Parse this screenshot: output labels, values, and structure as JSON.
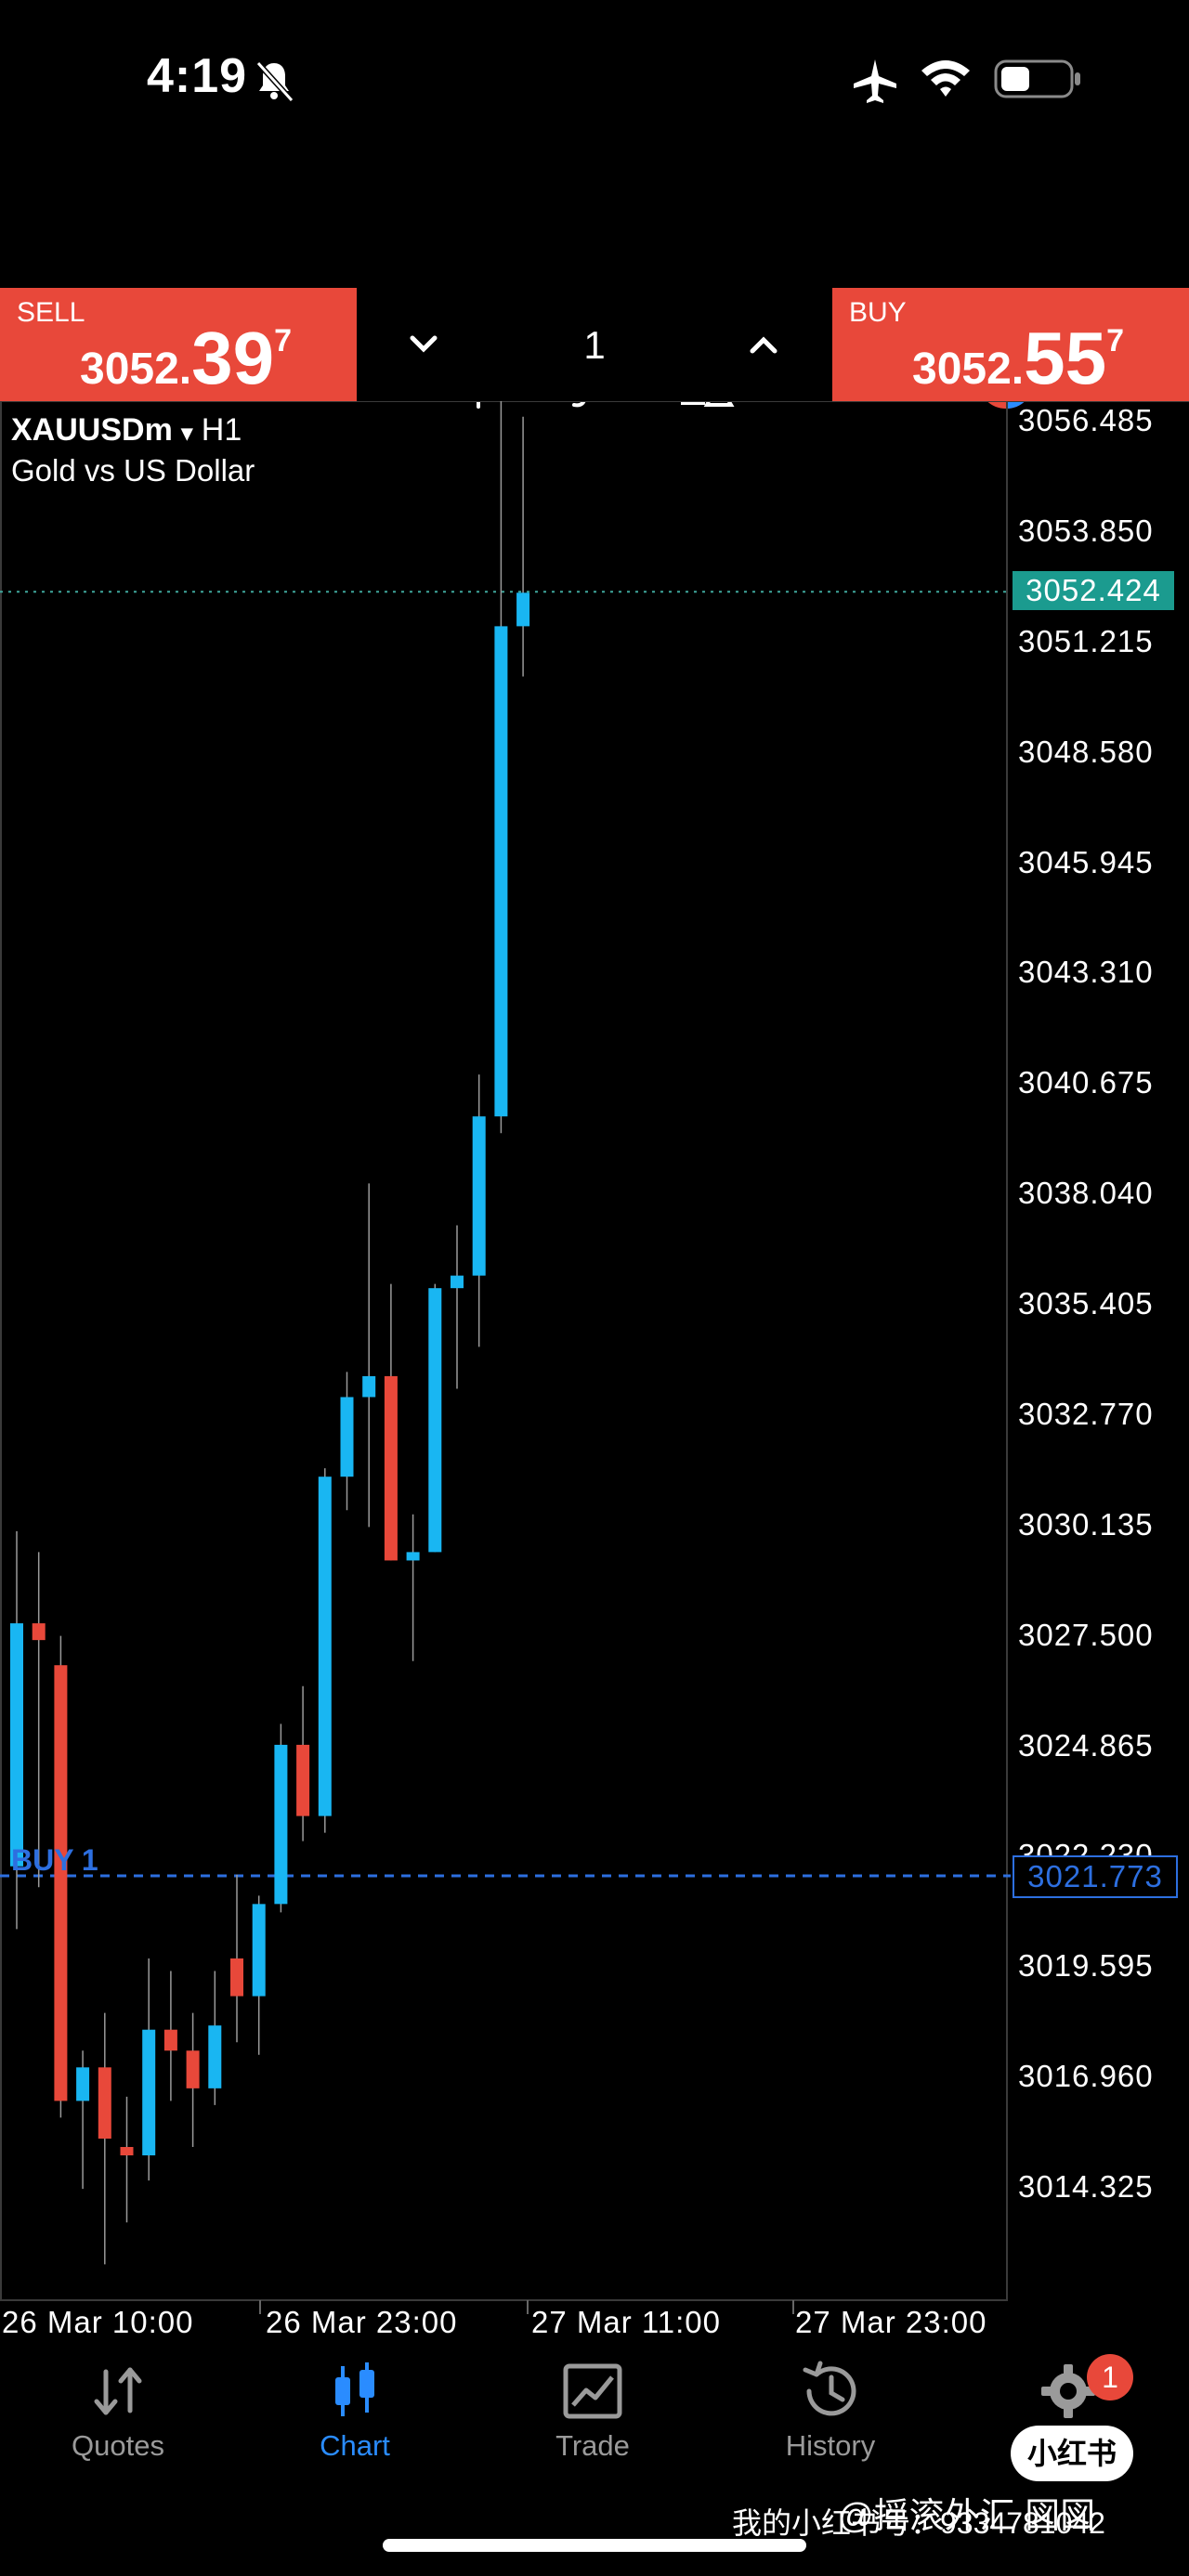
{
  "status_bar": {
    "time": "4:19"
  },
  "toolbar": {
    "timeframe": "H1"
  },
  "trade_bar": {
    "sell": {
      "label": "SELL",
      "price_small": "3052.",
      "price_big": "39",
      "price_sup": "7"
    },
    "buy": {
      "label": "BUY",
      "price_small": "3052.",
      "price_big": "55",
      "price_sup": "7"
    },
    "volume": "1"
  },
  "chart_info": {
    "symbol": "XAUUSDm",
    "dropdown_marker": "▾",
    "timeframe": "H1",
    "description": "Gold vs US Dollar"
  },
  "chart_data": {
    "type": "candlestick",
    "price_axis": [
      "3056.485",
      "3053.850",
      "3051.215",
      "3048.580",
      "3045.945",
      "3043.310",
      "3040.675",
      "3038.040",
      "3035.405",
      "3032.770",
      "3030.135",
      "3027.500",
      "3024.865",
      "3022.230",
      "3019.595",
      "3016.960",
      "3014.325"
    ],
    "time_axis": [
      "26 Mar 10:00",
      "26 Mar 23:00",
      "27 Mar 11:00",
      "27 Mar 23:00"
    ],
    "current_price": "3052.424",
    "buy_order": {
      "label": "BUY 1",
      "price": "3021.773"
    },
    "bull_color": "#19b6f2",
    "bear_color": "#e8483a",
    "candles": [
      {
        "o": 3022.0,
        "h": 3030.0,
        "l": 3020.5,
        "c": 3027.8
      },
      {
        "o": 3027.8,
        "h": 3029.5,
        "l": 3021.5,
        "c": 3027.4
      },
      {
        "o": 3026.8,
        "h": 3027.5,
        "l": 3016.0,
        "c": 3016.4
      },
      {
        "o": 3016.4,
        "h": 3017.6,
        "l": 3014.3,
        "c": 3017.2
      },
      {
        "o": 3017.2,
        "h": 3018.5,
        "l": 3012.5,
        "c": 3015.5
      },
      {
        "o": 3015.3,
        "h": 3016.5,
        "l": 3013.5,
        "c": 3015.1
      },
      {
        "o": 3015.1,
        "h": 3019.8,
        "l": 3014.5,
        "c": 3018.1
      },
      {
        "o": 3018.1,
        "h": 3019.5,
        "l": 3016.4,
        "c": 3017.6
      },
      {
        "o": 3017.6,
        "h": 3018.5,
        "l": 3015.3,
        "c": 3016.7
      },
      {
        "o": 3016.7,
        "h": 3019.5,
        "l": 3016.3,
        "c": 3018.2
      },
      {
        "o": 3019.8,
        "h": 3021.8,
        "l": 3017.8,
        "c": 3018.9
      },
      {
        "o": 3018.9,
        "h": 3021.3,
        "l": 3017.5,
        "c": 3021.1
      },
      {
        "o": 3021.1,
        "h": 3025.4,
        "l": 3020.9,
        "c": 3024.9
      },
      {
        "o": 3024.9,
        "h": 3026.3,
        "l": 3022.6,
        "c": 3023.2
      },
      {
        "o": 3023.2,
        "h": 3031.5,
        "l": 3022.8,
        "c": 3031.3
      },
      {
        "o": 3031.3,
        "h": 3033.8,
        "l": 3030.5,
        "c": 3033.2
      },
      {
        "o": 3033.2,
        "h": 3038.3,
        "l": 3030.1,
        "c": 3033.7
      },
      {
        "o": 3033.7,
        "h": 3035.9,
        "l": 3029.3,
        "c": 3029.3
      },
      {
        "o": 3029.3,
        "h": 3030.4,
        "l": 3026.9,
        "c": 3029.5
      },
      {
        "o": 3029.5,
        "h": 3035.9,
        "l": 3029.5,
        "c": 3035.8
      },
      {
        "o": 3035.8,
        "h": 3037.3,
        "l": 3033.4,
        "c": 3036.1
      },
      {
        "o": 3036.1,
        "h": 3040.9,
        "l": 3034.4,
        "c": 3039.9
      },
      {
        "o": 3039.9,
        "h": 3057.0,
        "l": 3039.5,
        "c": 3051.6
      },
      {
        "o": 3051.6,
        "h": 3056.6,
        "l": 3050.4,
        "c": 3052.4
      }
    ]
  },
  "nav": {
    "quotes": "Quotes",
    "chart": "Chart",
    "trade": "Trade",
    "history": "History",
    "settings_badge": "1"
  },
  "watermark": {
    "logo": "小红书",
    "text": "我的小红书号：9334781042",
    "handle": "@摇滚外汇 図図"
  }
}
